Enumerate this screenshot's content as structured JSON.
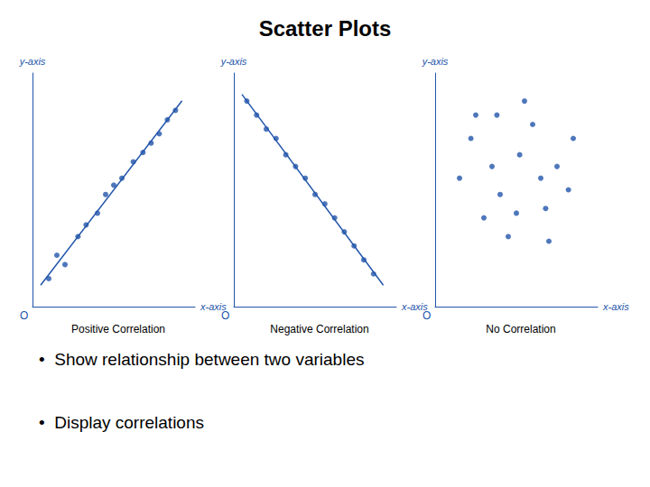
{
  "title": "Scatter Plots",
  "annotations": [
    "•  Show relationship between two variables",
    "•  Display correlations"
  ],
  "chart_data": [
    {
      "type": "scatter",
      "title": "Positive Correlation",
      "xlabel": "x-axis",
      "ylabel": "y-axis",
      "annotations": [
        "O"
      ],
      "xlim": [
        0,
        1
      ],
      "ylim": [
        0,
        1
      ],
      "tick_labels": false,
      "grid": false,
      "series": [
        {
          "type": "scatter",
          "color": "#2255aa",
          "x": [
            0.1,
            0.15,
            0.2,
            0.28,
            0.33,
            0.4,
            0.45,
            0.5,
            0.55,
            0.62,
            0.68,
            0.73,
            0.78,
            0.83,
            0.88
          ],
          "values": [
            0.12,
            0.22,
            0.18,
            0.3,
            0.35,
            0.4,
            0.48,
            0.52,
            0.55,
            0.62,
            0.66,
            0.7,
            0.74,
            0.8,
            0.84
          ]
        },
        {
          "type": "line",
          "color": "#2255aa",
          "x": [
            0.05,
            0.92
          ],
          "values": [
            0.0914,
            0.8812
          ]
        }
      ]
    },
    {
      "type": "scatter",
      "title": "Negative Correlation",
      "xlabel": "x-axis",
      "ylabel": "y-axis",
      "annotations": [
        "O"
      ],
      "xlim": [
        0,
        1
      ],
      "ylim": [
        0,
        1
      ],
      "tick_labels": false,
      "grid": false,
      "series": [
        {
          "type": "scatter",
          "color": "#2255aa",
          "x": [
            0.08,
            0.14,
            0.2,
            0.26,
            0.32,
            0.38,
            0.44,
            0.5,
            0.56,
            0.62,
            0.68,
            0.74,
            0.8,
            0.86
          ],
          "values": [
            0.88,
            0.82,
            0.76,
            0.72,
            0.65,
            0.6,
            0.55,
            0.48,
            0.44,
            0.38,
            0.32,
            0.26,
            0.2,
            0.14
          ]
        },
        {
          "type": "line",
          "color": "#2255aa",
          "x": [
            0.05,
            0.92
          ],
          "values": [
            0.9087,
            0.0916
          ]
        }
      ]
    },
    {
      "type": "scatter",
      "title": "No Correlation",
      "xlabel": "x-axis",
      "ylabel": "y-axis",
      "annotations": [
        "O"
      ],
      "xlim": [
        0,
        1
      ],
      "ylim": [
        0,
        1
      ],
      "tick_labels": false,
      "grid": false,
      "series": [
        {
          "type": "scatter",
          "color": "#2255aa",
          "x": [
            0.15,
            0.22,
            0.3,
            0.38,
            0.45,
            0.52,
            0.6,
            0.68,
            0.75,
            0.82,
            0.25,
            0.4,
            0.55,
            0.7,
            0.85,
            0.35,
            0.5,
            0.65
          ],
          "values": [
            0.55,
            0.72,
            0.38,
            0.82,
            0.3,
            0.65,
            0.78,
            0.42,
            0.6,
            0.5,
            0.82,
            0.48,
            0.88,
            0.28,
            0.72,
            0.6,
            0.4,
            0.55
          ]
        }
      ]
    }
  ]
}
